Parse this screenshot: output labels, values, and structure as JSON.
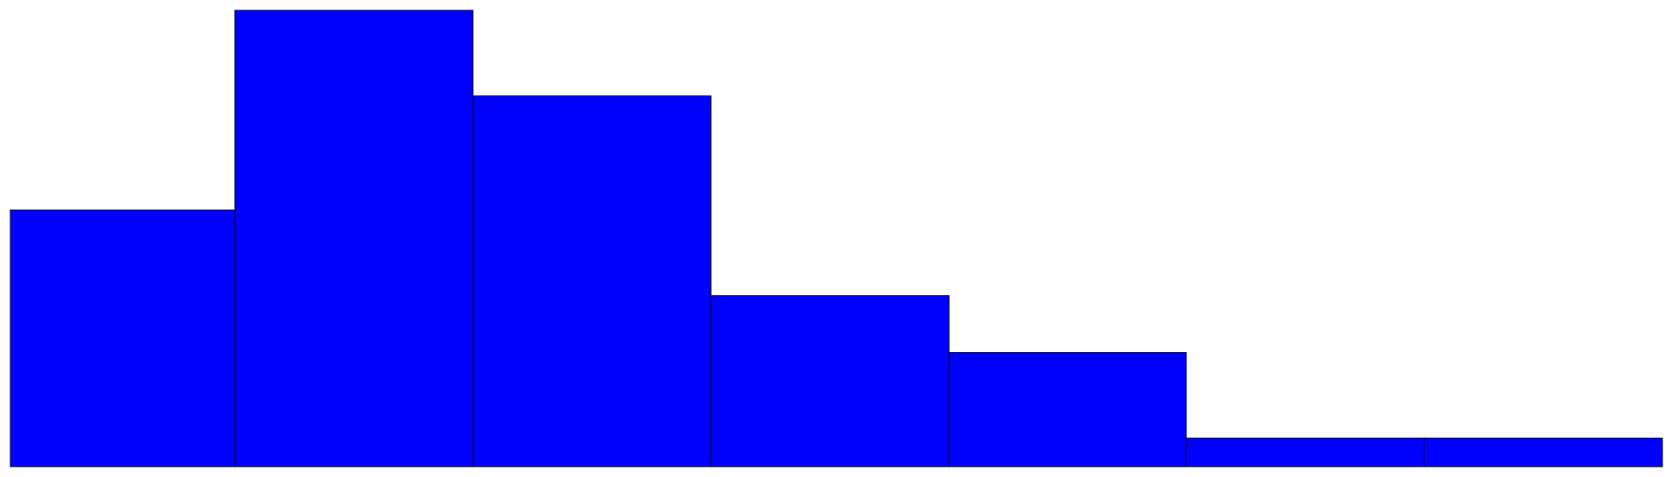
{
  "chart_data": {
    "type": "bar",
    "title": "",
    "xlabel": "",
    "ylabel": "",
    "values": [
      9,
      16,
      13,
      6,
      4,
      1,
      1
    ],
    "ylim": [
      0,
      16
    ],
    "grid": false,
    "legend": "none",
    "colors": {
      "bar_fill": "#0000ff",
      "bar_stroke": "#000000",
      "background": "#ffffff"
    }
  }
}
